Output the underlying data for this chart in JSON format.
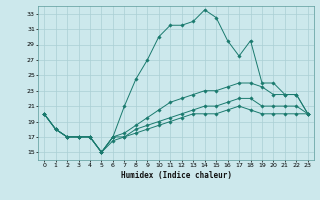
{
  "title": "",
  "xlabel": "Humidex (Indice chaleur)",
  "background_color": "#cce8ec",
  "grid_color": "#aacfd4",
  "line_color": "#1a7a6e",
  "xlim": [
    -0.5,
    23.5
  ],
  "ylim": [
    14,
    34
  ],
  "xticks": [
    0,
    1,
    2,
    3,
    4,
    5,
    6,
    7,
    8,
    9,
    10,
    11,
    12,
    13,
    14,
    15,
    16,
    17,
    18,
    19,
    20,
    21,
    22,
    23
  ],
  "yticks": [
    15,
    17,
    19,
    21,
    23,
    25,
    27,
    29,
    31,
    33
  ],
  "series": [
    {
      "x": [
        0,
        1,
        2,
        3,
        4,
        5,
        6,
        7,
        8,
        9,
        10,
        11,
        12,
        13,
        14,
        15,
        16,
        17,
        18,
        19,
        20,
        21,
        22,
        23
      ],
      "y": [
        20,
        18,
        17,
        17,
        17,
        15,
        17,
        21,
        24.5,
        27,
        30,
        31.5,
        31.5,
        32,
        33.5,
        32.5,
        29.5,
        27.5,
        29.5,
        24,
        24,
        22.5,
        22.5,
        20
      ]
    },
    {
      "x": [
        0,
        1,
        2,
        3,
        4,
        5,
        6,
        7,
        8,
        9,
        10,
        11,
        12,
        13,
        14,
        15,
        16,
        17,
        18,
        19,
        20,
        21,
        22,
        23
      ],
      "y": [
        20,
        18,
        17,
        17,
        17,
        15,
        17,
        17.5,
        18.5,
        19.5,
        20.5,
        21.5,
        22,
        22.5,
        23,
        23,
        23.5,
        24,
        24,
        23.5,
        22.5,
        22.5,
        22.5,
        20
      ]
    },
    {
      "x": [
        0,
        1,
        2,
        3,
        4,
        5,
        6,
        7,
        8,
        9,
        10,
        11,
        12,
        13,
        14,
        15,
        16,
        17,
        18,
        19,
        20,
        21,
        22,
        23
      ],
      "y": [
        20,
        18,
        17,
        17,
        17,
        15,
        17,
        17,
        18,
        18.5,
        19,
        19.5,
        20,
        20.5,
        21,
        21,
        21.5,
        22,
        22,
        21,
        21,
        21,
        21,
        20
      ]
    },
    {
      "x": [
        0,
        1,
        2,
        3,
        4,
        5,
        6,
        7,
        8,
        9,
        10,
        11,
        12,
        13,
        14,
        15,
        16,
        17,
        18,
        19,
        20,
        21,
        22,
        23
      ],
      "y": [
        20,
        18,
        17,
        17,
        17,
        15,
        16.5,
        17,
        17.5,
        18,
        18.5,
        19,
        19.5,
        20,
        20,
        20,
        20.5,
        21,
        20.5,
        20,
        20,
        20,
        20,
        20
      ]
    }
  ]
}
